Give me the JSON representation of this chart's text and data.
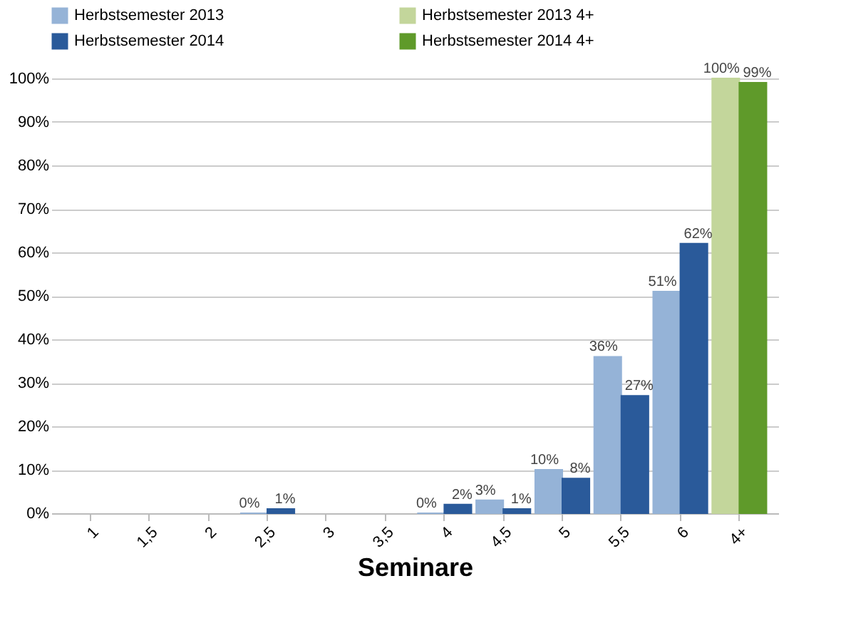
{
  "chart_data": {
    "type": "bar",
    "xlabel": "Seminare",
    "categories": [
      "1",
      "1,5",
      "2",
      "2,5",
      "3",
      "3,5",
      "4",
      "4,5",
      "5",
      "5,5",
      "6",
      "4+"
    ],
    "series": [
      {
        "name": "Herbstsemester 2013",
        "color": "#95b3d7",
        "values": [
          null,
          null,
          null,
          0,
          null,
          null,
          0,
          3,
          10,
          36,
          51,
          null
        ],
        "value_labels": [
          null,
          null,
          null,
          "0%",
          null,
          null,
          "0%",
          "3%",
          "10%",
          "36%",
          "51%",
          null
        ]
      },
      {
        "name": "Herbstsemester 2014",
        "color": "#2a5a9a",
        "values": [
          null,
          null,
          null,
          1,
          null,
          null,
          2,
          1,
          8,
          27,
          62,
          null
        ],
        "value_labels": [
          null,
          null,
          null,
          "1%",
          null,
          null,
          "2%",
          "1%",
          "8%",
          "27%",
          "62%",
          null
        ]
      },
      {
        "name": "Herbstsemester 2013 4+",
        "color": "#c3d69b",
        "values": [
          null,
          null,
          null,
          null,
          null,
          null,
          null,
          null,
          null,
          null,
          null,
          100
        ],
        "value_labels": [
          null,
          null,
          null,
          null,
          null,
          null,
          null,
          null,
          null,
          null,
          null,
          "100%"
        ]
      },
      {
        "name": "Herbstsemester 2014 4+",
        "color": "#5f9a2a",
        "values": [
          null,
          null,
          null,
          null,
          null,
          null,
          null,
          null,
          null,
          null,
          null,
          99
        ],
        "value_labels": [
          null,
          null,
          null,
          null,
          null,
          null,
          null,
          null,
          null,
          null,
          null,
          "99%"
        ]
      }
    ],
    "ylim": [
      0,
      100
    ],
    "yticks": [
      {
        "value": 0,
        "label": "0%"
      },
      {
        "value": 10,
        "label": "10%"
      },
      {
        "value": 20,
        "label": "20%"
      },
      {
        "value": 30,
        "label": "30%"
      },
      {
        "value": 40,
        "label": "40%"
      },
      {
        "value": 50,
        "label": "50%"
      },
      {
        "value": 60,
        "label": "60%"
      },
      {
        "value": 70,
        "label": "70%"
      },
      {
        "value": 80,
        "label": "80%"
      },
      {
        "value": 90,
        "label": "90%"
      },
      {
        "value": 100,
        "label": "100%"
      }
    ],
    "grid": "y",
    "legend": "top"
  }
}
